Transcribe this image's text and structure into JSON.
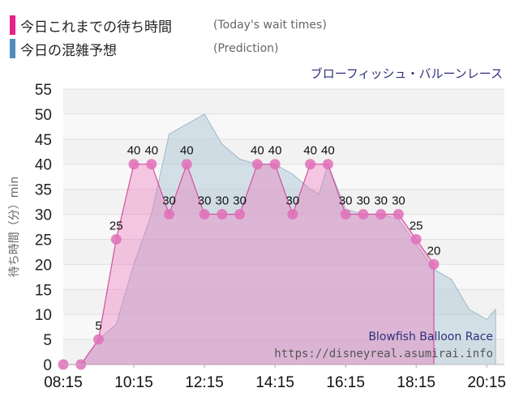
{
  "legend": {
    "today_label": "今日これまでの待ち時間",
    "today_sub": "(Today's wait times)",
    "today_color": "#e8208b",
    "predict_label": "今日の混雑予想",
    "predict_sub": "(Prediction)",
    "predict_color": "#4e8dbd"
  },
  "attraction_name_jp": "ブローフィッシュ・バルーンレース",
  "watermark": {
    "name_en": "Blowfish Balloon Race",
    "url": "https://disneyreal.asumirai.info"
  },
  "chart_data": {
    "type": "area",
    "ylabel": "待ち時間（分）min",
    "ylim": [
      0,
      55
    ],
    "y_ticks": [
      0,
      5,
      10,
      15,
      20,
      25,
      30,
      35,
      40,
      45,
      50,
      55
    ],
    "x_tick_labels": [
      "08:15",
      "10:15",
      "12:15",
      "14:15",
      "16:15",
      "18:15",
      "20:15"
    ],
    "grid": true,
    "series": [
      {
        "name": "今日これまでの待ち時間",
        "color": "#e070b8",
        "x": [
          "08:15",
          "08:45",
          "09:15",
          "09:45",
          "10:15",
          "10:45",
          "11:15",
          "11:45",
          "12:15",
          "12:45",
          "13:15",
          "13:45",
          "14:15",
          "14:45",
          "15:15",
          "15:45",
          "16:15",
          "16:45",
          "17:15",
          "17:45",
          "18:15",
          "18:45"
        ],
        "values": [
          0,
          0,
          5,
          25,
          40,
          40,
          30,
          40,
          30,
          30,
          30,
          40,
          40,
          30,
          40,
          40,
          30,
          30,
          30,
          30,
          25,
          20
        ]
      },
      {
        "name": "今日の混雑予想",
        "color": "#b5cbd9",
        "x": [
          "08:15",
          "08:45",
          "09:15",
          "09:45",
          "10:15",
          "10:45",
          "11:15",
          "11:45",
          "12:15",
          "12:30",
          "12:45",
          "13:15",
          "13:45",
          "14:15",
          "14:45",
          "15:15",
          "15:30",
          "15:45",
          "16:15",
          "16:45",
          "17:15",
          "17:45",
          "18:15",
          "18:45",
          "19:15",
          "19:45",
          "20:15",
          "20:30"
        ],
        "values": [
          0,
          0,
          5,
          8,
          20,
          30,
          46,
          48,
          50,
          47,
          44,
          41,
          40,
          40,
          38,
          35,
          34,
          40,
          31,
          30,
          30,
          29,
          24,
          19,
          17,
          11,
          9,
          11
        ]
      }
    ]
  }
}
